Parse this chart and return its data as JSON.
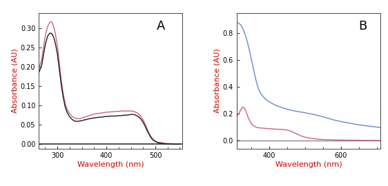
{
  "panel_A": {
    "label": "A",
    "xlabel": "Wavelength (nm)",
    "ylabel": "Absorbance (AU)",
    "xlabel_color": "#cc0000",
    "ylabel_color": "#cc0000",
    "xlim": [
      262,
      555
    ],
    "ylim": [
      -0.012,
      0.34
    ],
    "yticks": [
      0.0,
      0.05,
      0.1,
      0.15,
      0.2,
      0.25,
      0.3
    ],
    "xticks": [
      300,
      400,
      500
    ],
    "red_line": {
      "color": "#d06080",
      "x": [
        262,
        268,
        272,
        276,
        280,
        284,
        287,
        290,
        293,
        296,
        300,
        304,
        308,
        312,
        316,
        320,
        325,
        330,
        335,
        340,
        345,
        350,
        355,
        360,
        365,
        370,
        375,
        380,
        385,
        390,
        395,
        400,
        405,
        410,
        415,
        420,
        425,
        430,
        435,
        440,
        445,
        450,
        455,
        460,
        465,
        470,
        475,
        480,
        485,
        490,
        495,
        500,
        505,
        510,
        515,
        520,
        530,
        540,
        550
      ],
      "y": [
        0.195,
        0.22,
        0.255,
        0.285,
        0.305,
        0.315,
        0.318,
        0.313,
        0.302,
        0.285,
        0.255,
        0.21,
        0.165,
        0.13,
        0.105,
        0.09,
        0.079,
        0.072,
        0.068,
        0.066,
        0.066,
        0.068,
        0.07,
        0.072,
        0.074,
        0.076,
        0.078,
        0.079,
        0.08,
        0.081,
        0.082,
        0.083,
        0.083,
        0.084,
        0.084,
        0.085,
        0.085,
        0.086,
        0.086,
        0.086,
        0.086,
        0.086,
        0.085,
        0.083,
        0.079,
        0.073,
        0.063,
        0.05,
        0.035,
        0.022,
        0.013,
        0.008,
        0.005,
        0.004,
        0.003,
        0.002,
        0.001,
        0.001,
        0.0
      ]
    },
    "black_line": {
      "color": "#1a1a1a",
      "x": [
        262,
        268,
        272,
        276,
        280,
        284,
        287,
        290,
        293,
        296,
        300,
        304,
        308,
        312,
        316,
        320,
        325,
        330,
        335,
        340,
        345,
        350,
        355,
        360,
        365,
        370,
        375,
        380,
        385,
        390,
        395,
        400,
        405,
        410,
        415,
        420,
        425,
        430,
        435,
        440,
        445,
        450,
        455,
        460,
        465,
        470,
        475,
        480,
        485,
        490,
        495,
        500,
        505,
        510,
        515,
        520,
        530,
        540,
        550
      ],
      "y": [
        0.185,
        0.205,
        0.235,
        0.262,
        0.28,
        0.287,
        0.288,
        0.284,
        0.275,
        0.26,
        0.234,
        0.193,
        0.153,
        0.12,
        0.096,
        0.082,
        0.071,
        0.064,
        0.06,
        0.059,
        0.06,
        0.061,
        0.063,
        0.064,
        0.066,
        0.067,
        0.068,
        0.069,
        0.07,
        0.07,
        0.071,
        0.072,
        0.072,
        0.073,
        0.073,
        0.073,
        0.074,
        0.074,
        0.075,
        0.075,
        0.076,
        0.077,
        0.077,
        0.075,
        0.072,
        0.066,
        0.057,
        0.044,
        0.031,
        0.019,
        0.011,
        0.007,
        0.004,
        0.003,
        0.002,
        0.001,
        0.001,
        0.0,
        0.0
      ]
    }
  },
  "panel_B": {
    "label": "B",
    "xlabel": "Wavelength (nm)",
    "ylabel": "Absorbance (AU)",
    "xlabel_color": "#cc0000",
    "ylabel_color": "#cc0000",
    "xlim": [
      310,
      710
    ],
    "ylim": [
      -0.06,
      0.95
    ],
    "yticks": [
      0.0,
      0.2,
      0.4,
      0.6,
      0.8
    ],
    "xticks": [
      400,
      600
    ],
    "red_line": {
      "color": "#d06080",
      "x": [
        310,
        315,
        320,
        325,
        330,
        335,
        340,
        345,
        350,
        355,
        360,
        365,
        370,
        375,
        380,
        385,
        390,
        395,
        400,
        405,
        410,
        420,
        430,
        440,
        450,
        460,
        470,
        480,
        490,
        500,
        510,
        520,
        530,
        540,
        550,
        560,
        580,
        600,
        620,
        640,
        660,
        680,
        700,
        710
      ],
      "y": [
        0.18,
        0.2,
        0.225,
        0.248,
        0.248,
        0.225,
        0.185,
        0.155,
        0.13,
        0.115,
        0.105,
        0.1,
        0.097,
        0.095,
        0.094,
        0.093,
        0.092,
        0.091,
        0.09,
        0.089,
        0.088,
        0.086,
        0.085,
        0.083,
        0.08,
        0.072,
        0.06,
        0.047,
        0.035,
        0.027,
        0.021,
        0.017,
        0.014,
        0.011,
        0.009,
        0.008,
        0.006,
        0.005,
        0.004,
        0.004,
        0.003,
        0.003,
        0.003,
        0.003
      ]
    },
    "blue_line": {
      "color": "#6688cc",
      "x": [
        310,
        315,
        320,
        325,
        330,
        335,
        340,
        345,
        350,
        355,
        360,
        365,
        370,
        375,
        380,
        390,
        400,
        410,
        420,
        430,
        440,
        450,
        460,
        470,
        480,
        490,
        500,
        510,
        520,
        530,
        540,
        550,
        560,
        580,
        600,
        620,
        640,
        660,
        680,
        700,
        710
      ],
      "y": [
        0.88,
        0.875,
        0.865,
        0.845,
        0.815,
        0.775,
        0.73,
        0.675,
        0.615,
        0.555,
        0.49,
        0.435,
        0.39,
        0.36,
        0.34,
        0.31,
        0.29,
        0.275,
        0.262,
        0.252,
        0.243,
        0.235,
        0.228,
        0.222,
        0.217,
        0.213,
        0.208,
        0.203,
        0.198,
        0.192,
        0.186,
        0.178,
        0.17,
        0.155,
        0.143,
        0.133,
        0.123,
        0.115,
        0.108,
        0.102,
        0.098
      ]
    }
  },
  "background_color": "#ffffff",
  "tick_fontsize": 7,
  "label_fontsize": 8,
  "panel_label_fontsize": 13
}
